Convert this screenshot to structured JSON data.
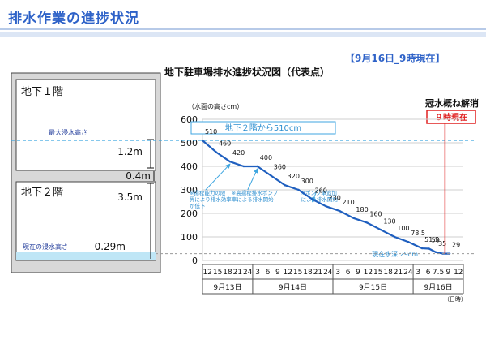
{
  "page": {
    "title": "排水作業の進捗状況",
    "as_of": "【9月16日_9時現在】"
  },
  "building": {
    "b1_label": "地下１階",
    "b2_label": "地下２階",
    "max_water_label": "最大浸水高さ",
    "current_water_label": "現在の浸水高さ",
    "dim_b1": "1.2m",
    "dim_slab": "0.4m",
    "dim_b2": "3.5m",
    "dim_current": "0.29m"
  },
  "colors": {
    "title": "#2e62c8",
    "line": "#1f5fbf",
    "annotation": "#3fa6e0",
    "red": "#e02020",
    "water": "#bfe6f6",
    "slab": "#d8d8d8"
  },
  "chart_data": {
    "type": "line",
    "title": "地下駐車場排水進捗状況図（代表点）",
    "ylabel": "（水面の高さcm）",
    "xlabel": "（日時）",
    "ylim": [
      0,
      600
    ],
    "yticks": [
      0,
      100,
      200,
      300,
      400,
      500,
      600
    ],
    "days": [
      {
        "label": "9月13日",
        "hours": [
          "12",
          "15",
          "18",
          "21",
          "24"
        ]
      },
      {
        "label": "9月14日",
        "hours": [
          "3",
          "6",
          "9",
          "12",
          "15",
          "18",
          "21",
          "24"
        ]
      },
      {
        "label": "9月15日",
        "hours": [
          "3",
          "6",
          "9",
          "12",
          "15",
          "18",
          "21",
          "24"
        ]
      },
      {
        "label": "9月16日",
        "hours": [
          "3",
          "6",
          "7.5",
          "9",
          "12"
        ]
      }
    ],
    "series": [
      {
        "x": [
          12,
          15,
          18,
          21,
          24,
          27,
          30,
          33,
          36,
          39,
          42,
          45,
          48,
          51,
          54,
          57,
          60,
          61.5,
          63,
          64.5,
          66
        ],
        "values": [
          510,
          460,
          420,
          400,
          400,
          360,
          320,
          300,
          260,
          230,
          210,
          180,
          160,
          130,
          100,
          78.5,
          51.5,
          50,
          35,
          29,
          29
        ],
        "point_labels": [
          "510",
          "460",
          "420",
          "",
          "400",
          "360",
          "320",
          "300",
          "260",
          "230",
          "210",
          "180",
          "160",
          "130",
          "100",
          "78.5",
          "51.5",
          "50",
          "35",
          "",
          "29"
        ]
      }
    ],
    "reference_line": {
      "value": 510,
      "label": "地下２階から510cm"
    },
    "current_label": "現在水深 29cm",
    "now_marker": {
      "x": 65,
      "title": "冠水概ね解消",
      "label": "９時現在"
    },
    "annotations": [
      {
        "x": 18,
        "text": [
          "※揚程能力の限",
          "界により排水効率",
          "が低下"
        ]
      },
      {
        "x": 24,
        "text": [
          "※高揚程排水ポンプ",
          "車による排水開始"
        ]
      },
      {
        "x": 36,
        "text": [
          "※ポンプ車追加",
          "による排水開始"
        ]
      }
    ]
  }
}
